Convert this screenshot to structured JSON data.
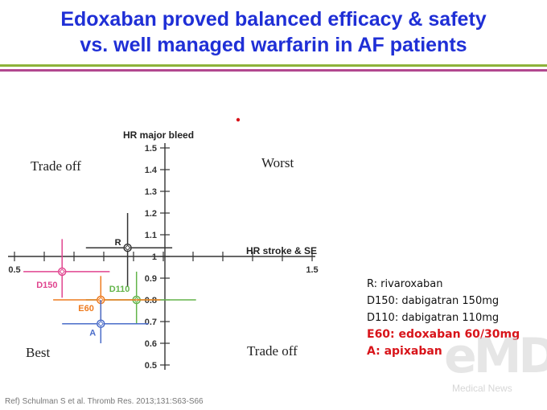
{
  "title": {
    "line1": "Edoxaban proved balanced efficacy & safety",
    "line2": "vs. well managed warfarin in AF patients"
  },
  "colors": {
    "title": "#1f2fd6",
    "rule_top": "#8db33a",
    "rule_bottom": "#b2478f",
    "highlight": "#d8141a"
  },
  "chart_data": {
    "type": "scatter",
    "xlabel": "HR stroke & SE",
    "ylabel": "HR major bleed",
    "xlim": [
      0.5,
      1.5
    ],
    "ylim": [
      0.5,
      1.5
    ],
    "x_ticks": [
      {
        "value": 0.5,
        "label": "0.5"
      },
      {
        "value": 1.5,
        "label": "1.5"
      }
    ],
    "y_ticks": [
      {
        "value": 1.5,
        "label": "1.5"
      },
      {
        "value": 1.4,
        "label": "1.4"
      },
      {
        "value": 1.3,
        "label": "1.3"
      },
      {
        "value": 1.2,
        "label": "1.2"
      },
      {
        "value": 1.1,
        "label": "1.1"
      },
      {
        "value": 1.0,
        "label": "1"
      },
      {
        "value": 0.9,
        "label": "0.9"
      },
      {
        "value": 0.8,
        "label": "0.8"
      },
      {
        "value": 0.7,
        "label": "0.7"
      },
      {
        "value": 0.6,
        "label": "0.6"
      },
      {
        "value": 0.5,
        "label": "0.5"
      }
    ],
    "quadrant_labels": {
      "top_left": "Trade off",
      "top_right": "Worst",
      "bottom_left": "Best",
      "bottom_right": "Trade off"
    },
    "points": [
      {
        "label": "R",
        "x": 0.88,
        "y": 1.04,
        "x_ci": [
          0.74,
          1.03
        ],
        "y_ci": [
          0.86,
          1.2
        ],
        "color": "#333333"
      },
      {
        "label": "D150",
        "x": 0.66,
        "y": 0.93,
        "x_ci": [
          0.53,
          0.82
        ],
        "y_ci": [
          0.81,
          1.08
        ],
        "color": "#e0458f"
      },
      {
        "label": "D110",
        "x": 0.91,
        "y": 0.8,
        "x_ci": [
          0.74,
          1.11
        ],
        "y_ci": [
          0.69,
          0.93
        ],
        "color": "#63b44a"
      },
      {
        "label": "E60",
        "x": 0.79,
        "y": 0.8,
        "x_ci": [
          0.63,
          0.99
        ],
        "y_ci": [
          0.71,
          0.91
        ],
        "color": "#ee7b1f"
      },
      {
        "label": "A",
        "x": 0.79,
        "y": 0.69,
        "x_ci": [
          0.66,
          0.95
        ],
        "y_ci": [
          0.6,
          0.8
        ],
        "color": "#4a6cc9"
      }
    ]
  },
  "legend": {
    "items": [
      {
        "text": "R: rivaroxaban",
        "highlight": false
      },
      {
        "text": "D150: dabigatran 150mg",
        "highlight": false
      },
      {
        "text": "D110: dabigatran 110mg",
        "highlight": false
      },
      {
        "text": "E60: edoxaban 60/30mg",
        "highlight": true
      },
      {
        "text": "A: apixaban",
        "highlight": true
      }
    ]
  },
  "reference": "Ref) Schulman S et al. Thromb Res. 2013;131:S63-S66",
  "watermark": {
    "logo_text": "eMD",
    "subtitle": "Medical News"
  }
}
